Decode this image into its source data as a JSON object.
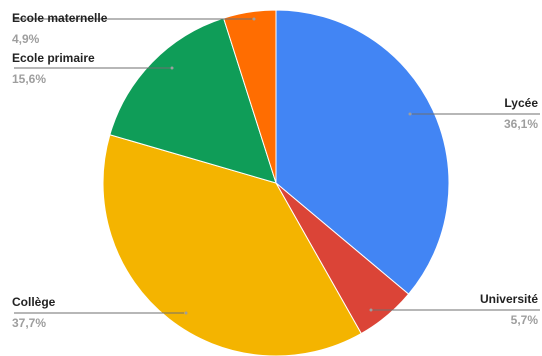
{
  "chart_data": {
    "type": "pie",
    "start_angle_deg": 0,
    "direction": "clockwise",
    "slices": [
      {
        "label": "Lycée",
        "value": 36.1,
        "display": "36,1%",
        "color": "#4285f4"
      },
      {
        "label": "Université",
        "value": 5.7,
        "display": "5,7%",
        "color": "#db4437"
      },
      {
        "label": "Collège",
        "value": 37.7,
        "display": "37,7%",
        "color": "#f4b400"
      },
      {
        "label": "Ecole primaire",
        "value": 15.6,
        "display": "15,6%",
        "color": "#0f9d58"
      },
      {
        "label": "Ecole maternelle",
        "value": 4.9,
        "display": "4,9%",
        "color": "#ff6d01"
      }
    ],
    "legend": "none",
    "label_style": "outside labels with leader lines"
  }
}
